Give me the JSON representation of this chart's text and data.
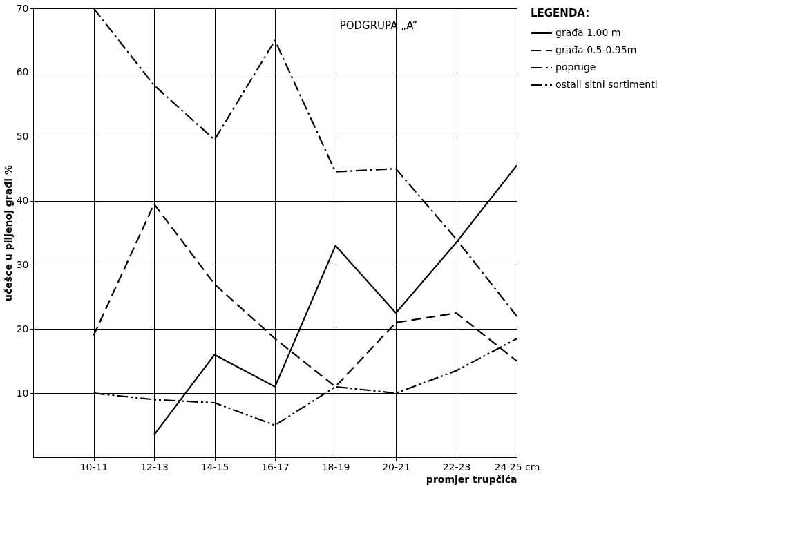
{
  "chart_data": {
    "type": "line",
    "title": "PODGRUPA „A“",
    "xlabel": "promjer trupčića",
    "ylabel": "učešce u piljenoj građi %",
    "legend_title": "LEGENDA:",
    "categories": [
      "10-11",
      "12-13",
      "14-15",
      "16-17",
      "18-19",
      "20-21",
      "22-23",
      "24 25 cm"
    ],
    "series": [
      {
        "name": "građa 1.00 m",
        "color": "#000000",
        "line_style": "solid",
        "values": [
          null,
          3.5,
          16,
          11,
          33,
          22.5,
          33.5,
          45.5
        ]
      },
      {
        "name": "građa 0.5-0.95m",
        "color": "#000000",
        "line_style": "dashed",
        "values": [
          19,
          39.5,
          27,
          18.5,
          11,
          21,
          22.5,
          15
        ]
      },
      {
        "name": "popruge",
        "color": "#000000",
        "line_style": "dashdot",
        "values": [
          70,
          58,
          49.5,
          65,
          44.5,
          45,
          34,
          22
        ]
      },
      {
        "name": "ostali sitni sortimenti",
        "color": "#000000",
        "line_style": "dashdotdot",
        "values": [
          10,
          9,
          8.5,
          5,
          11,
          10,
          13.5,
          18.5
        ]
      }
    ],
    "ylim": [
      0,
      70
    ],
    "yticks": [
      10,
      20,
      30,
      40,
      50,
      60,
      70
    ],
    "grid": true,
    "legend": "right",
    "marker": "none"
  }
}
